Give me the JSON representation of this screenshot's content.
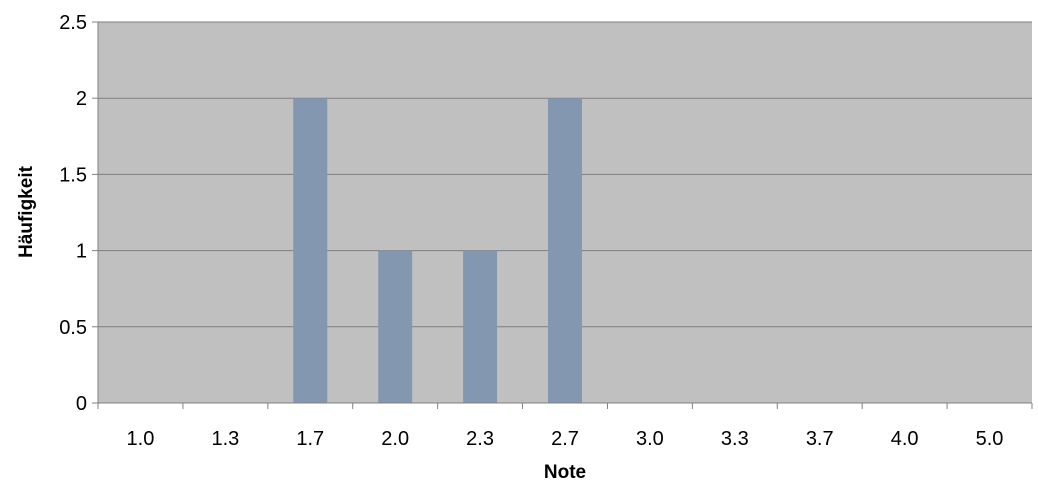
{
  "chart_data": {
    "type": "bar",
    "title": "",
    "xlabel": "Note",
    "ylabel": "Häufigkeit",
    "categories": [
      "1.0",
      "1.3",
      "1.7",
      "2.0",
      "2.3",
      "2.7",
      "3.0",
      "3.3",
      "3.7",
      "4.0",
      "5.0"
    ],
    "values": [
      0,
      0,
      2,
      1,
      1,
      2,
      0,
      0,
      0,
      0,
      0
    ],
    "ylim": [
      0,
      2.5
    ],
    "yticks": [
      "0",
      "0.5",
      "1",
      "1.5",
      "2",
      "2.5"
    ],
    "grid": true,
    "legend": "none",
    "colors": {
      "bar": "#8497B0",
      "plot_background": "#C0C0C0",
      "gridline": "#7F7F7F",
      "axis": "#808080"
    }
  }
}
